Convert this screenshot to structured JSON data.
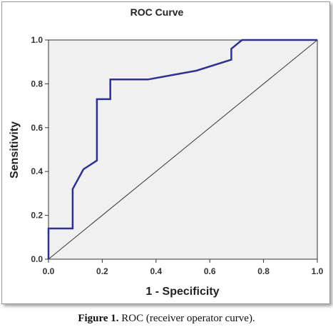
{
  "chart_data": {
    "type": "line",
    "title": "ROC Curve",
    "xlabel": "1 - Specificity",
    "ylabel": "Sensitivity",
    "xlim": [
      0,
      1
    ],
    "ylim": [
      0,
      1
    ],
    "x_ticks": [
      "0.0",
      "0.2",
      "0.4",
      "0.6",
      "0.8",
      "1.0"
    ],
    "y_ticks": [
      "0.0",
      "0.2",
      "0.4",
      "0.6",
      "0.8",
      "1.0"
    ],
    "grid": false,
    "series": [
      {
        "color": "#2e3192",
        "x": [
          0.0,
          0.0,
          0.09,
          0.09,
          0.13,
          0.18,
          0.18,
          0.23,
          0.23,
          0.37,
          0.55,
          0.68,
          0.68,
          0.72,
          1.0
        ],
        "y": [
          0.0,
          0.14,
          0.14,
          0.32,
          0.41,
          0.45,
          0.73,
          0.73,
          0.82,
          0.82,
          0.86,
          0.91,
          0.96,
          1.0,
          1.0
        ]
      },
      {
        "color": "#333333",
        "x": [
          0,
          1
        ],
        "y": [
          0,
          1
        ]
      }
    ],
    "plot_background": "#f0f0f0"
  },
  "caption": {
    "label": "Figure 1.",
    "text": " ROC (receiver operator curve)."
  }
}
